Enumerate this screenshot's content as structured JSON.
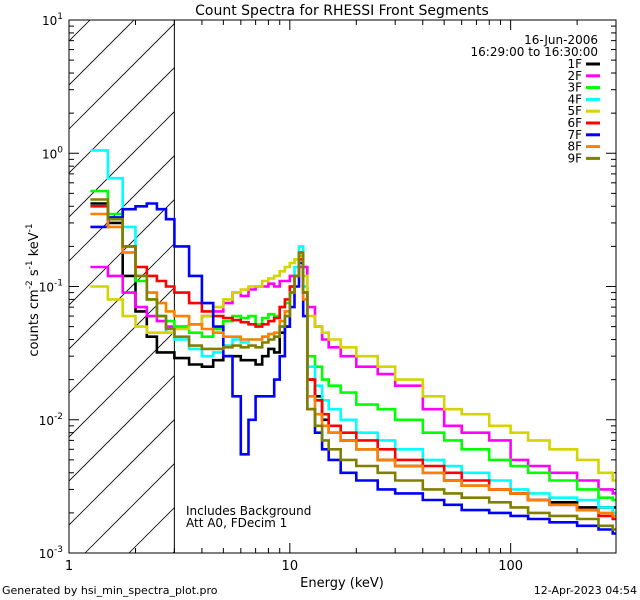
{
  "chart_data": {
    "type": "line",
    "title": "Count Spectra for RHESSI Front Segments",
    "xlabel": "Energy (keV)",
    "ylabel": "counts cm",
    "ylabel_exp1": "-2",
    "ylabel_mid": " s",
    "ylabel_exp2": "-1",
    "ylabel_end": " keV",
    "ylabel_exp3": "-1",
    "xscale": "log",
    "yscale": "log",
    "xlim": [
      1,
      300
    ],
    "ylim": [
      0.001,
      10
    ],
    "x_ticks": [
      {
        "value": 1,
        "label": "1"
      },
      {
        "value": 10,
        "label": "10"
      },
      {
        "value": 100,
        "label": "100"
      }
    ],
    "y_ticks": [
      {
        "value": 0.001,
        "base": "10",
        "exp": "-3"
      },
      {
        "value": 0.01,
        "base": "10",
        "exp": "-2"
      },
      {
        "value": 0.1,
        "base": "10",
        "exp": "-1"
      },
      {
        "value": 1,
        "base": "10",
        "exp": "0"
      },
      {
        "value": 10,
        "base": "10",
        "exp": "1"
      }
    ],
    "hatched_region_max_keV": 3,
    "date_label": "16-Jun-2006",
    "time_range_label": "16:29:00 to 16:30:00",
    "annotation_line1": "Includes Background",
    "annotation_line2": "Att A0, FDecim 1",
    "footer_left": "Generated by hsi_min_spectra_plot.pro",
    "footer_right": "12-Apr-2023 04:54",
    "series": [
      {
        "name": "1F",
        "color": "#000000",
        "x": [
          1.25,
          1.5,
          1.75,
          2,
          2.25,
          2.5,
          2.75,
          3,
          3.5,
          4,
          4.5,
          5,
          5.5,
          6,
          6.5,
          7,
          7.5,
          8,
          8.5,
          9,
          9.5,
          10,
          10.5,
          11,
          11.5,
          12,
          13,
          14,
          15,
          17,
          20,
          25,
          30,
          40,
          50,
          60,
          80,
          100,
          120,
          150,
          200,
          250,
          290
        ],
        "y": [
          0.42,
          0.3,
          0.12,
          0.065,
          0.042,
          0.032,
          0.032,
          0.029,
          0.026,
          0.025,
          0.028,
          0.03,
          0.03,
          0.028,
          0.028,
          0.026,
          0.03,
          0.034,
          0.032,
          0.045,
          0.05,
          0.09,
          0.12,
          0.18,
          0.09,
          0.02,
          0.015,
          0.01,
          0.008,
          0.007,
          0.006,
          0.005,
          0.0045,
          0.004,
          0.0035,
          0.0032,
          0.003,
          0.0028,
          0.0025,
          0.0024,
          0.0022,
          0.0022,
          0.0022
        ]
      },
      {
        "name": "2F",
        "color": "#ff00ff",
        "x": [
          1.25,
          1.5,
          1.75,
          2,
          2.25,
          2.5,
          2.75,
          3,
          3.5,
          4,
          4.5,
          5,
          5.5,
          6,
          6.5,
          7,
          7.5,
          8,
          8.5,
          9,
          9.5,
          10,
          10.5,
          11,
          11.5,
          12,
          13,
          14,
          15,
          17,
          20,
          25,
          30,
          40,
          50,
          60,
          80,
          100,
          120,
          150,
          200,
          250,
          290
        ],
        "y": [
          0.14,
          0.12,
          0.09,
          0.07,
          0.06,
          0.055,
          0.05,
          0.05,
          0.052,
          0.06,
          0.065,
          0.075,
          0.09,
          0.085,
          0.095,
          0.1,
          0.1,
          0.105,
          0.1,
          0.11,
          0.11,
          0.12,
          0.12,
          0.14,
          0.14,
          0.07,
          0.05,
          0.04,
          0.035,
          0.03,
          0.025,
          0.022,
          0.018,
          0.012,
          0.009,
          0.008,
          0.007,
          0.005,
          0.0045,
          0.004,
          0.0035,
          0.003,
          0.0028
        ]
      },
      {
        "name": "3F",
        "color": "#00ff00",
        "x": [
          1.25,
          1.5,
          1.75,
          2,
          2.25,
          2.5,
          2.75,
          3,
          3.5,
          4,
          4.5,
          5,
          5.5,
          6,
          6.5,
          7,
          7.5,
          8,
          8.5,
          9,
          9.5,
          10,
          10.5,
          11,
          11.5,
          12,
          13,
          14,
          15,
          17,
          20,
          25,
          30,
          40,
          50,
          60,
          80,
          100,
          120,
          150,
          200,
          250,
          290
        ],
        "y": [
          0.52,
          0.35,
          0.18,
          0.11,
          0.08,
          0.06,
          0.055,
          0.05,
          0.045,
          0.042,
          0.048,
          0.055,
          0.06,
          0.058,
          0.06,
          0.052,
          0.058,
          0.062,
          0.06,
          0.07,
          0.075,
          0.1,
          0.12,
          0.18,
          0.1,
          0.03,
          0.025,
          0.02,
          0.018,
          0.016,
          0.013,
          0.012,
          0.01,
          0.008,
          0.007,
          0.006,
          0.005,
          0.0045,
          0.004,
          0.0035,
          0.003,
          0.0026,
          0.0025
        ]
      },
      {
        "name": "4F",
        "color": "#00ffff",
        "x": [
          1.25,
          1.5,
          1.75,
          2,
          2.25,
          2.5,
          2.75,
          3,
          3.5,
          4,
          4.5,
          5,
          5.5,
          6,
          6.5,
          7,
          7.5,
          8,
          8.5,
          9,
          9.5,
          10,
          10.5,
          11,
          11.5,
          12,
          13,
          14,
          15,
          17,
          20,
          25,
          30,
          40,
          50,
          60,
          80,
          100,
          120,
          150,
          200,
          250,
          290
        ],
        "y": [
          1.05,
          0.65,
          0.28,
          0.14,
          0.09,
          0.06,
          0.045,
          0.04,
          0.034,
          0.03,
          0.032,
          0.036,
          0.04,
          0.038,
          0.04,
          0.04,
          0.042,
          0.044,
          0.042,
          0.05,
          0.06,
          0.09,
          0.14,
          0.2,
          0.1,
          0.025,
          0.018,
          0.014,
          0.012,
          0.01,
          0.008,
          0.007,
          0.006,
          0.005,
          0.0045,
          0.004,
          0.0035,
          0.003,
          0.0028,
          0.0026,
          0.0025,
          0.0022,
          0.002
        ]
      },
      {
        "name": "5F",
        "color": "#d4d400",
        "x": [
          1.25,
          1.5,
          1.75,
          2,
          2.25,
          2.5,
          2.75,
          3,
          3.5,
          4,
          4.5,
          5,
          5.5,
          6,
          6.5,
          7,
          7.5,
          8,
          8.5,
          9,
          9.5,
          10,
          10.5,
          11,
          11.5,
          12,
          13,
          14,
          15,
          17,
          20,
          25,
          30,
          40,
          50,
          60,
          80,
          100,
          120,
          150,
          200,
          250,
          290
        ],
        "y": [
          0.1,
          0.08,
          0.06,
          0.05,
          0.045,
          0.045,
          0.045,
          0.048,
          0.052,
          0.06,
          0.07,
          0.08,
          0.09,
          0.095,
          0.1,
          0.1,
          0.11,
          0.115,
          0.12,
          0.13,
          0.14,
          0.15,
          0.16,
          0.16,
          0.12,
          0.06,
          0.05,
          0.045,
          0.04,
          0.035,
          0.03,
          0.025,
          0.02,
          0.015,
          0.012,
          0.011,
          0.009,
          0.008,
          0.007,
          0.006,
          0.005,
          0.004,
          0.0035
        ]
      },
      {
        "name": "6F",
        "color": "#ff0000",
        "x": [
          1.25,
          1.5,
          1.75,
          2,
          2.25,
          2.5,
          2.75,
          3,
          3.5,
          4,
          4.5,
          5,
          5.5,
          6,
          6.5,
          7,
          7.5,
          8,
          8.5,
          9,
          9.5,
          10,
          10.5,
          11,
          11.5,
          12,
          13,
          14,
          15,
          17,
          20,
          25,
          30,
          40,
          50,
          60,
          80,
          100,
          120,
          150,
          200,
          250,
          290
        ],
        "y": [
          0.4,
          0.32,
          0.2,
          0.14,
          0.12,
          0.11,
          0.1,
          0.09,
          0.075,
          0.065,
          0.06,
          0.058,
          0.056,
          0.054,
          0.052,
          0.05,
          0.052,
          0.055,
          0.058,
          0.07,
          0.08,
          0.1,
          0.12,
          0.16,
          0.09,
          0.02,
          0.014,
          0.011,
          0.009,
          0.008,
          0.007,
          0.006,
          0.005,
          0.0045,
          0.004,
          0.0035,
          0.003,
          0.0028,
          0.0025,
          0.0023,
          0.0021,
          0.0019,
          0.0018
        ]
      },
      {
        "name": "7F",
        "color": "#0000ff",
        "x": [
          1.25,
          1.5,
          1.75,
          2,
          2.25,
          2.5,
          2.75,
          3,
          3.5,
          4,
          4.5,
          5,
          5.5,
          6,
          6.5,
          7,
          7.5,
          8,
          8.5,
          9,
          9.5,
          10,
          10.5,
          11,
          11.5,
          12,
          13,
          14,
          15,
          17,
          20,
          25,
          30,
          40,
          50,
          60,
          80,
          100,
          120,
          150,
          200,
          250,
          290
        ],
        "y": [
          0.28,
          0.33,
          0.38,
          0.4,
          0.42,
          0.38,
          0.32,
          0.2,
          0.12,
          0.075,
          0.05,
          0.03,
          0.015,
          0.0055,
          0.01,
          0.015,
          0.015,
          0.015,
          0.02,
          0.03,
          0.05,
          0.07,
          0.1,
          0.15,
          0.06,
          0.012,
          0.008,
          0.006,
          0.005,
          0.004,
          0.0035,
          0.003,
          0.0028,
          0.0025,
          0.0023,
          0.0021,
          0.002,
          0.0019,
          0.0018,
          0.0017,
          0.0016,
          0.0015,
          0.0014
        ]
      },
      {
        "name": "8F",
        "color": "#ff8000",
        "x": [
          1.25,
          1.5,
          1.75,
          2,
          2.25,
          2.5,
          2.75,
          3,
          3.5,
          4,
          4.5,
          5,
          5.5,
          6,
          6.5,
          7,
          7.5,
          8,
          8.5,
          9,
          9.5,
          10,
          10.5,
          11,
          11.5,
          12,
          13,
          14,
          15,
          17,
          20,
          25,
          30,
          40,
          50,
          60,
          80,
          100,
          120,
          150,
          200,
          250,
          290
        ],
        "y": [
          0.35,
          0.28,
          0.18,
          0.12,
          0.09,
          0.075,
          0.065,
          0.06,
          0.052,
          0.048,
          0.045,
          0.042,
          0.042,
          0.04,
          0.04,
          0.04,
          0.042,
          0.044,
          0.045,
          0.055,
          0.065,
          0.09,
          0.12,
          0.17,
          0.08,
          0.015,
          0.011,
          0.009,
          0.008,
          0.007,
          0.006,
          0.005,
          0.0045,
          0.004,
          0.0035,
          0.0032,
          0.003,
          0.0028,
          0.0025,
          0.0023,
          0.0021,
          0.002,
          0.0019
        ]
      },
      {
        "name": "9F",
        "color": "#808000",
        "x": [
          1.25,
          1.5,
          1.75,
          2,
          2.25,
          2.5,
          2.75,
          3,
          3.5,
          4,
          4.5,
          5,
          5.5,
          6,
          6.5,
          7,
          7.5,
          8,
          8.5,
          9,
          9.5,
          10,
          10.5,
          11,
          11.5,
          12,
          13,
          14,
          15,
          17,
          20,
          25,
          30,
          40,
          50,
          60,
          80,
          100,
          120,
          150,
          200,
          250,
          290
        ],
        "y": [
          0.45,
          0.32,
          0.2,
          0.12,
          0.08,
          0.06,
          0.048,
          0.042,
          0.036,
          0.034,
          0.034,
          0.035,
          0.036,
          0.035,
          0.036,
          0.035,
          0.038,
          0.04,
          0.042,
          0.05,
          0.06,
          0.09,
          0.12,
          0.18,
          0.09,
          0.012,
          0.009,
          0.007,
          0.006,
          0.005,
          0.0045,
          0.004,
          0.0035,
          0.003,
          0.0028,
          0.0026,
          0.0024,
          0.0022,
          0.002,
          0.0019,
          0.0018,
          0.0016,
          0.0015
        ]
      }
    ]
  }
}
